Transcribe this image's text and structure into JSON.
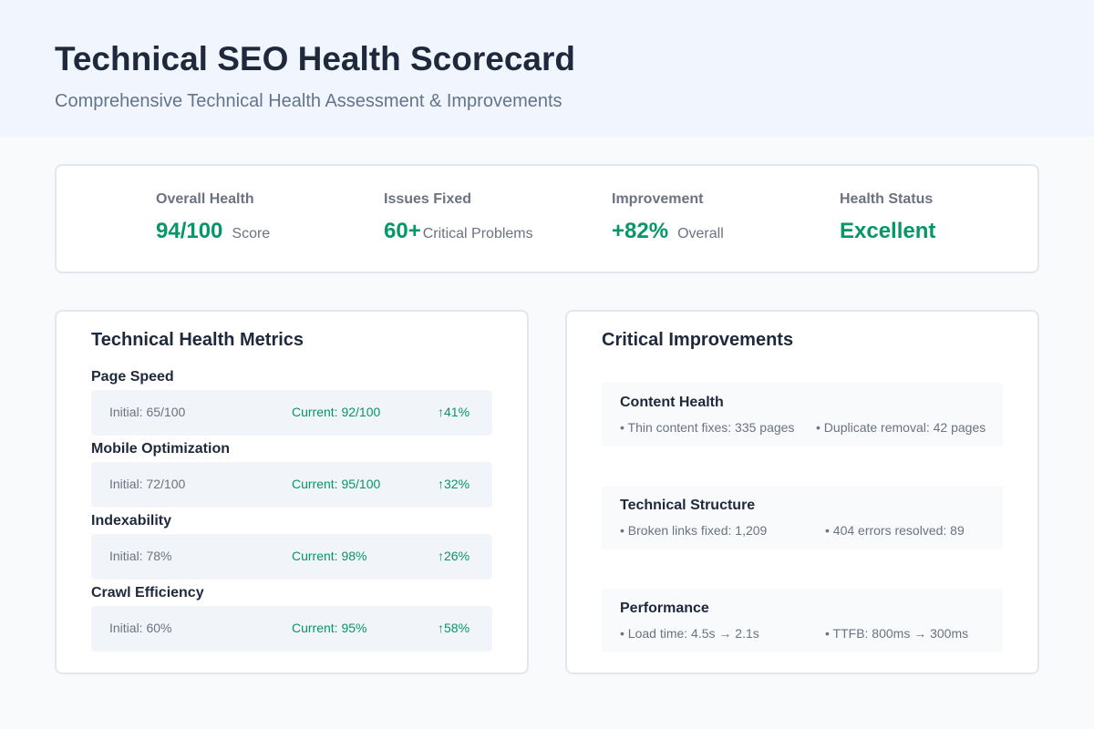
{
  "header": {
    "title": "Technical SEO Health Scorecard",
    "subtitle": "Comprehensive Technical Health Assessment & Improvements"
  },
  "stats": [
    {
      "label": "Overall Health",
      "value": "94/100",
      "unit": "Score"
    },
    {
      "label": "Issues Fixed",
      "value": "60+",
      "unit": "Critical Problems"
    },
    {
      "label": "Improvement",
      "value": "+82%",
      "unit": "Overall"
    },
    {
      "label": "Health Status",
      "value": "Excellent",
      "unit": ""
    }
  ],
  "metrics": {
    "title": "Technical Health Metrics",
    "items": [
      {
        "name": "Page Speed",
        "initial": "Initial: 65/100",
        "current": "Current: 92/100",
        "change": "↑41%"
      },
      {
        "name": "Mobile Optimization",
        "initial": "Initial: 72/100",
        "current": "Current: 95/100",
        "change": "↑32%"
      },
      {
        "name": "Indexability",
        "initial": "Initial: 78%",
        "current": "Current: 98%",
        "change": "↑26%"
      },
      {
        "name": "Crawl Efficiency",
        "initial": "Initial: 60%",
        "current": "Current: 95%",
        "change": "↑58%"
      }
    ]
  },
  "improvements": {
    "title": "Critical Improvements",
    "items": [
      {
        "title": "Content Health",
        "points": [
          "• Thin content fixes: 335 pages",
          "• Duplicate removal: 42 pages"
        ]
      },
      {
        "title": "Technical Structure",
        "points": [
          "• Broken links fixed: 1,209",
          "• 404 errors resolved: 89"
        ]
      },
      {
        "title": "Performance",
        "points": [
          "• Load time: 4.5s → 2.1s",
          "• TTFB: 800ms → 300ms"
        ]
      }
    ]
  },
  "colors": {
    "accent": "#059669",
    "border": "#e2e8f0",
    "header_bg": "#f1f5fd"
  }
}
